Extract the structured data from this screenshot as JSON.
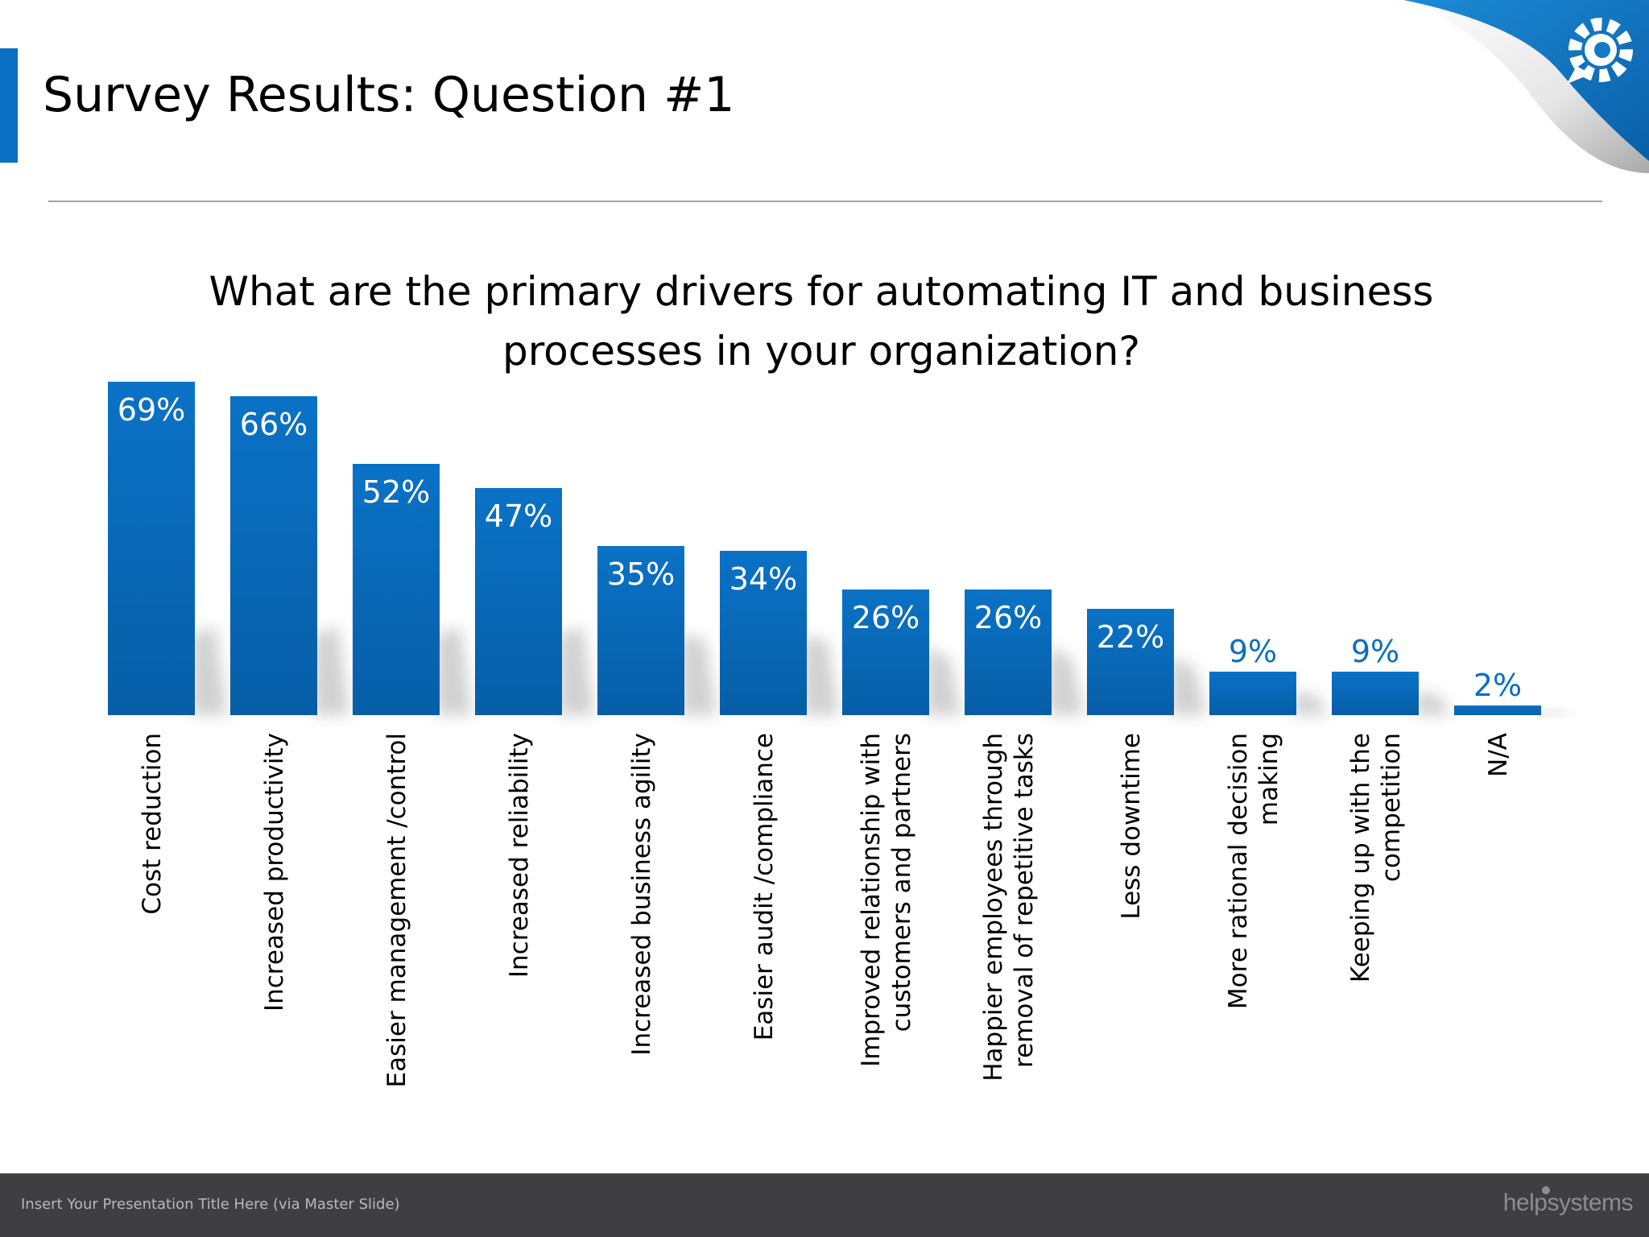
{
  "slide": {
    "title": "Survey Results: Question #1",
    "question_line1": "What are the primary drivers for automating IT and business",
    "question_line2": "processes in your organization?"
  },
  "footer": {
    "presentation_title": "Insert Your Presentation Title Here (via Master Slide)",
    "logo_text": "helpsystems"
  },
  "icons": {
    "corner_logo": "gear-speech-bubble-icon"
  },
  "colors": {
    "bar": "#0a6fc2",
    "bar_dark": "#075ea7",
    "label_inside": "#ffffff",
    "label_outside": "#0a6fc2",
    "accent": "#0a6fc2",
    "footer_bg": "#3f3f41"
  },
  "chart_data": {
    "type": "bar",
    "title": "What are the primary drivers for automating IT and business processes in your organization?",
    "categories": [
      [
        "Cost reduction"
      ],
      [
        "Increased productivity"
      ],
      [
        "Easier management /control"
      ],
      [
        "Increased reliability"
      ],
      [
        "Increased business agility"
      ],
      [
        "Easier audit /compliance"
      ],
      [
        "Improved relationship with",
        "customers and partners"
      ],
      [
        "Happier employees through",
        "removal of repetitive tasks"
      ],
      [
        "Less downtime"
      ],
      [
        "More rational decision",
        "making"
      ],
      [
        "Keeping up with the",
        "competition"
      ],
      [
        "N/A"
      ]
    ],
    "values": [
      69,
      66,
      52,
      47,
      35,
      34,
      26,
      26,
      22,
      9,
      9,
      2
    ],
    "value_labels": [
      "69%",
      "66%",
      "52%",
      "47%",
      "35%",
      "34%",
      "26%",
      "26%",
      "22%",
      "9%",
      "9%",
      "2%"
    ],
    "ylim": [
      0,
      69
    ],
    "grid": false,
    "legend": "none"
  }
}
